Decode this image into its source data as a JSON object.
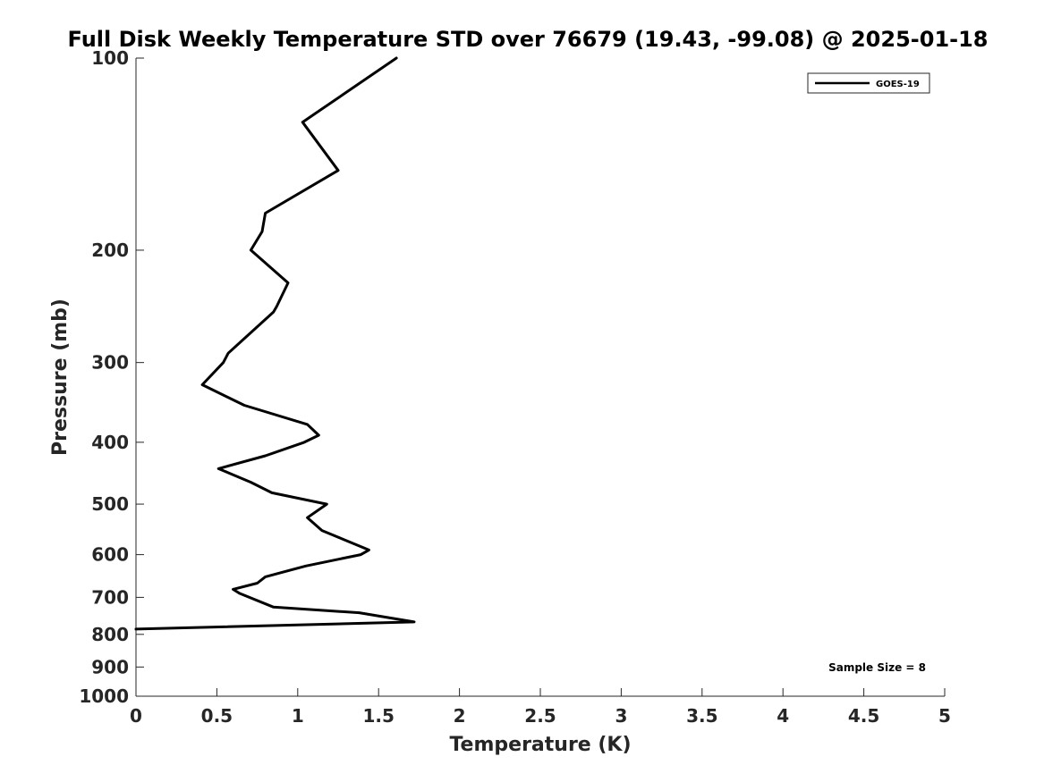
{
  "chart_data": {
    "type": "line",
    "title": "Full Disk Weekly Temperature STD over 76679 (19.43, -99.08) @ 2025-01-18",
    "xlabel": "Temperature (K)",
    "ylabel": "Pressure (mb)",
    "xlim": [
      0,
      5
    ],
    "ylim": [
      100,
      1000
    ],
    "y_scale": "log",
    "y_reversed": true,
    "x_ticks": [
      "0",
      "0.5",
      "1",
      "1.5",
      "2",
      "2.5",
      "3",
      "3.5",
      "4",
      "4.5",
      "5"
    ],
    "y_ticks": [
      "100",
      "200",
      "300",
      "400",
      "500",
      "600",
      "700",
      "800",
      "900",
      "1000"
    ],
    "grid": false,
    "legend_position": "top-right",
    "annotation": "Sample Size = 8",
    "series": [
      {
        "name": "GOES-19",
        "color": "#000000",
        "points": [
          {
            "x": 1.61,
            "p": 100
          },
          {
            "x": 1.03,
            "p": 126
          },
          {
            "x": 1.25,
            "p": 150
          },
          {
            "x": 0.8,
            "p": 175
          },
          {
            "x": 0.78,
            "p": 187
          },
          {
            "x": 0.71,
            "p": 200
          },
          {
            "x": 0.94,
            "p": 225
          },
          {
            "x": 0.87,
            "p": 245
          },
          {
            "x": 0.85,
            "p": 250
          },
          {
            "x": 0.57,
            "p": 290
          },
          {
            "x": 0.54,
            "p": 300
          },
          {
            "x": 0.41,
            "p": 325
          },
          {
            "x": 0.67,
            "p": 350
          },
          {
            "x": 1.06,
            "p": 375
          },
          {
            "x": 1.13,
            "p": 390
          },
          {
            "x": 1.04,
            "p": 400
          },
          {
            "x": 0.8,
            "p": 420
          },
          {
            "x": 0.51,
            "p": 440
          },
          {
            "x": 0.71,
            "p": 462
          },
          {
            "x": 0.84,
            "p": 480
          },
          {
            "x": 1.18,
            "p": 500
          },
          {
            "x": 1.06,
            "p": 525
          },
          {
            "x": 1.15,
            "p": 550
          },
          {
            "x": 1.44,
            "p": 590
          },
          {
            "x": 1.39,
            "p": 600
          },
          {
            "x": 1.05,
            "p": 625
          },
          {
            "x": 0.8,
            "p": 650
          },
          {
            "x": 0.75,
            "p": 665
          },
          {
            "x": 0.6,
            "p": 680
          },
          {
            "x": 0.64,
            "p": 690
          },
          {
            "x": 0.85,
            "p": 725
          },
          {
            "x": 1.38,
            "p": 740
          },
          {
            "x": 1.72,
            "p": 765
          },
          {
            "x": 0.0,
            "p": 785
          }
        ]
      }
    ]
  }
}
